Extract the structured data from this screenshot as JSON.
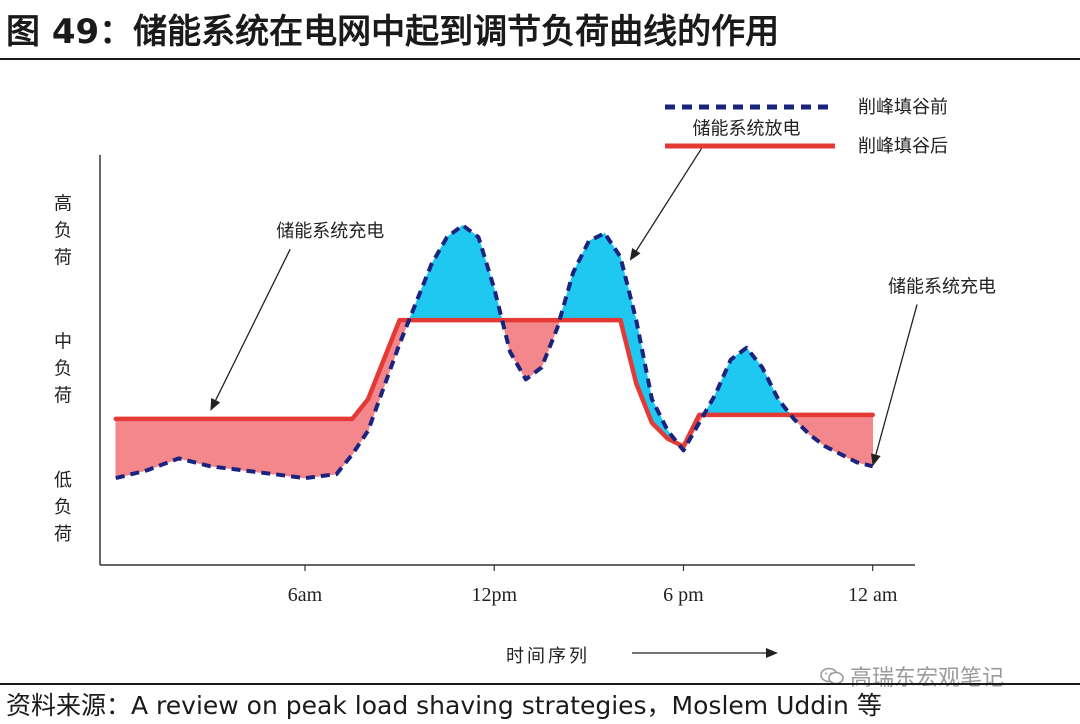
{
  "header": {
    "title": "图 49：储能系统在电网中起到调节负荷曲线的作用"
  },
  "chart_data": {
    "type": "line",
    "legend": [
      {
        "name": "削峰填谷前",
        "style": "dashed",
        "color": "#1a237e"
      },
      {
        "name": "削峰填谷后",
        "style": "solid",
        "color": "#e53935"
      }
    ],
    "legend_position": "top-right",
    "y_tick_labels": [
      {
        "text": "高负荷",
        "level": 0.85
      },
      {
        "text": "中负荷",
        "level": 0.5
      },
      {
        "text": "低负荷",
        "level": 0.15
      }
    ],
    "x_ticks": [
      {
        "label": "6am",
        "hour": 6
      },
      {
        "label": "12pm",
        "hour": 12
      },
      {
        "label": "6 pm",
        "hour": 18
      },
      {
        "label": "12 am",
        "hour": 24
      }
    ],
    "xlabel": "时间序列",
    "xlim": [
      -0.5,
      25.5
    ],
    "ylim": [
      0,
      1
    ],
    "grid": false,
    "series": [
      {
        "name": "削峰填谷前",
        "x": [
          0,
          1,
          2,
          3,
          4,
          5,
          6,
          7,
          7.5,
          8,
          9,
          10,
          10.5,
          11,
          11.5,
          12,
          12.5,
          13,
          13.5,
          14,
          14.5,
          15,
          15.5,
          16,
          16.5,
          17,
          17.5,
          18,
          18.5,
          19,
          19.5,
          20,
          20.5,
          21,
          21.5,
          22,
          22.5,
          23,
          23.5,
          24
        ],
        "values": [
          0.22,
          0.24,
          0.27,
          0.25,
          0.24,
          0.23,
          0.22,
          0.23,
          0.28,
          0.34,
          0.56,
          0.76,
          0.83,
          0.86,
          0.83,
          0.7,
          0.54,
          0.47,
          0.5,
          0.6,
          0.74,
          0.82,
          0.84,
          0.78,
          0.62,
          0.42,
          0.34,
          0.29,
          0.36,
          0.43,
          0.52,
          0.55,
          0.5,
          0.42,
          0.37,
          0.33,
          0.3,
          0.28,
          0.26,
          0.25
        ]
      },
      {
        "name": "削峰填谷后",
        "x": [
          0,
          1,
          2,
          3,
          4,
          5,
          6,
          7,
          7.5,
          8,
          9,
          10,
          10.5,
          11,
          11.5,
          12,
          12.5,
          13,
          13.5,
          14,
          14.5,
          15,
          15.5,
          16,
          16.5,
          17,
          17.5,
          18,
          18.5,
          19,
          19.5,
          20,
          20.5,
          21,
          21.5,
          22,
          22.5,
          23,
          23.5,
          24
        ],
        "values": [
          0.37,
          0.37,
          0.37,
          0.37,
          0.37,
          0.37,
          0.37,
          0.37,
          0.37,
          0.42,
          0.62,
          0.62,
          0.62,
          0.62,
          0.62,
          0.62,
          0.62,
          0.62,
          0.62,
          0.62,
          0.62,
          0.62,
          0.62,
          0.62,
          0.46,
          0.36,
          0.32,
          0.3,
          0.38,
          0.38,
          0.38,
          0.38,
          0.38,
          0.38,
          0.38,
          0.38,
          0.38,
          0.38,
          0.38,
          0.38
        ]
      }
    ],
    "fill_colors": {
      "discharge": "#1ec8f0",
      "charge": "#f4878c"
    },
    "annotations": [
      {
        "text": "储能系统充电",
        "arrow_to": {
          "x": 3.0,
          "y": 0.39
        },
        "label_at": {
          "x": 6.8,
          "y": 0.83
        }
      },
      {
        "text": "储能系统放电",
        "arrow_to": {
          "x": 16.3,
          "y": 0.77
        },
        "label_at": {
          "x": 20.0,
          "y": 1.09
        }
      },
      {
        "text": "储能系统充电",
        "arrow_to": {
          "x": 24.0,
          "y": 0.25
        },
        "label_at": {
          "x": 26.2,
          "y": 0.69
        }
      }
    ]
  },
  "source": {
    "text": "资料来源：A review on peak load shaving strategies，Moslem Uddin 等"
  },
  "watermark": {
    "text": "高瑞东宏观笔记"
  }
}
